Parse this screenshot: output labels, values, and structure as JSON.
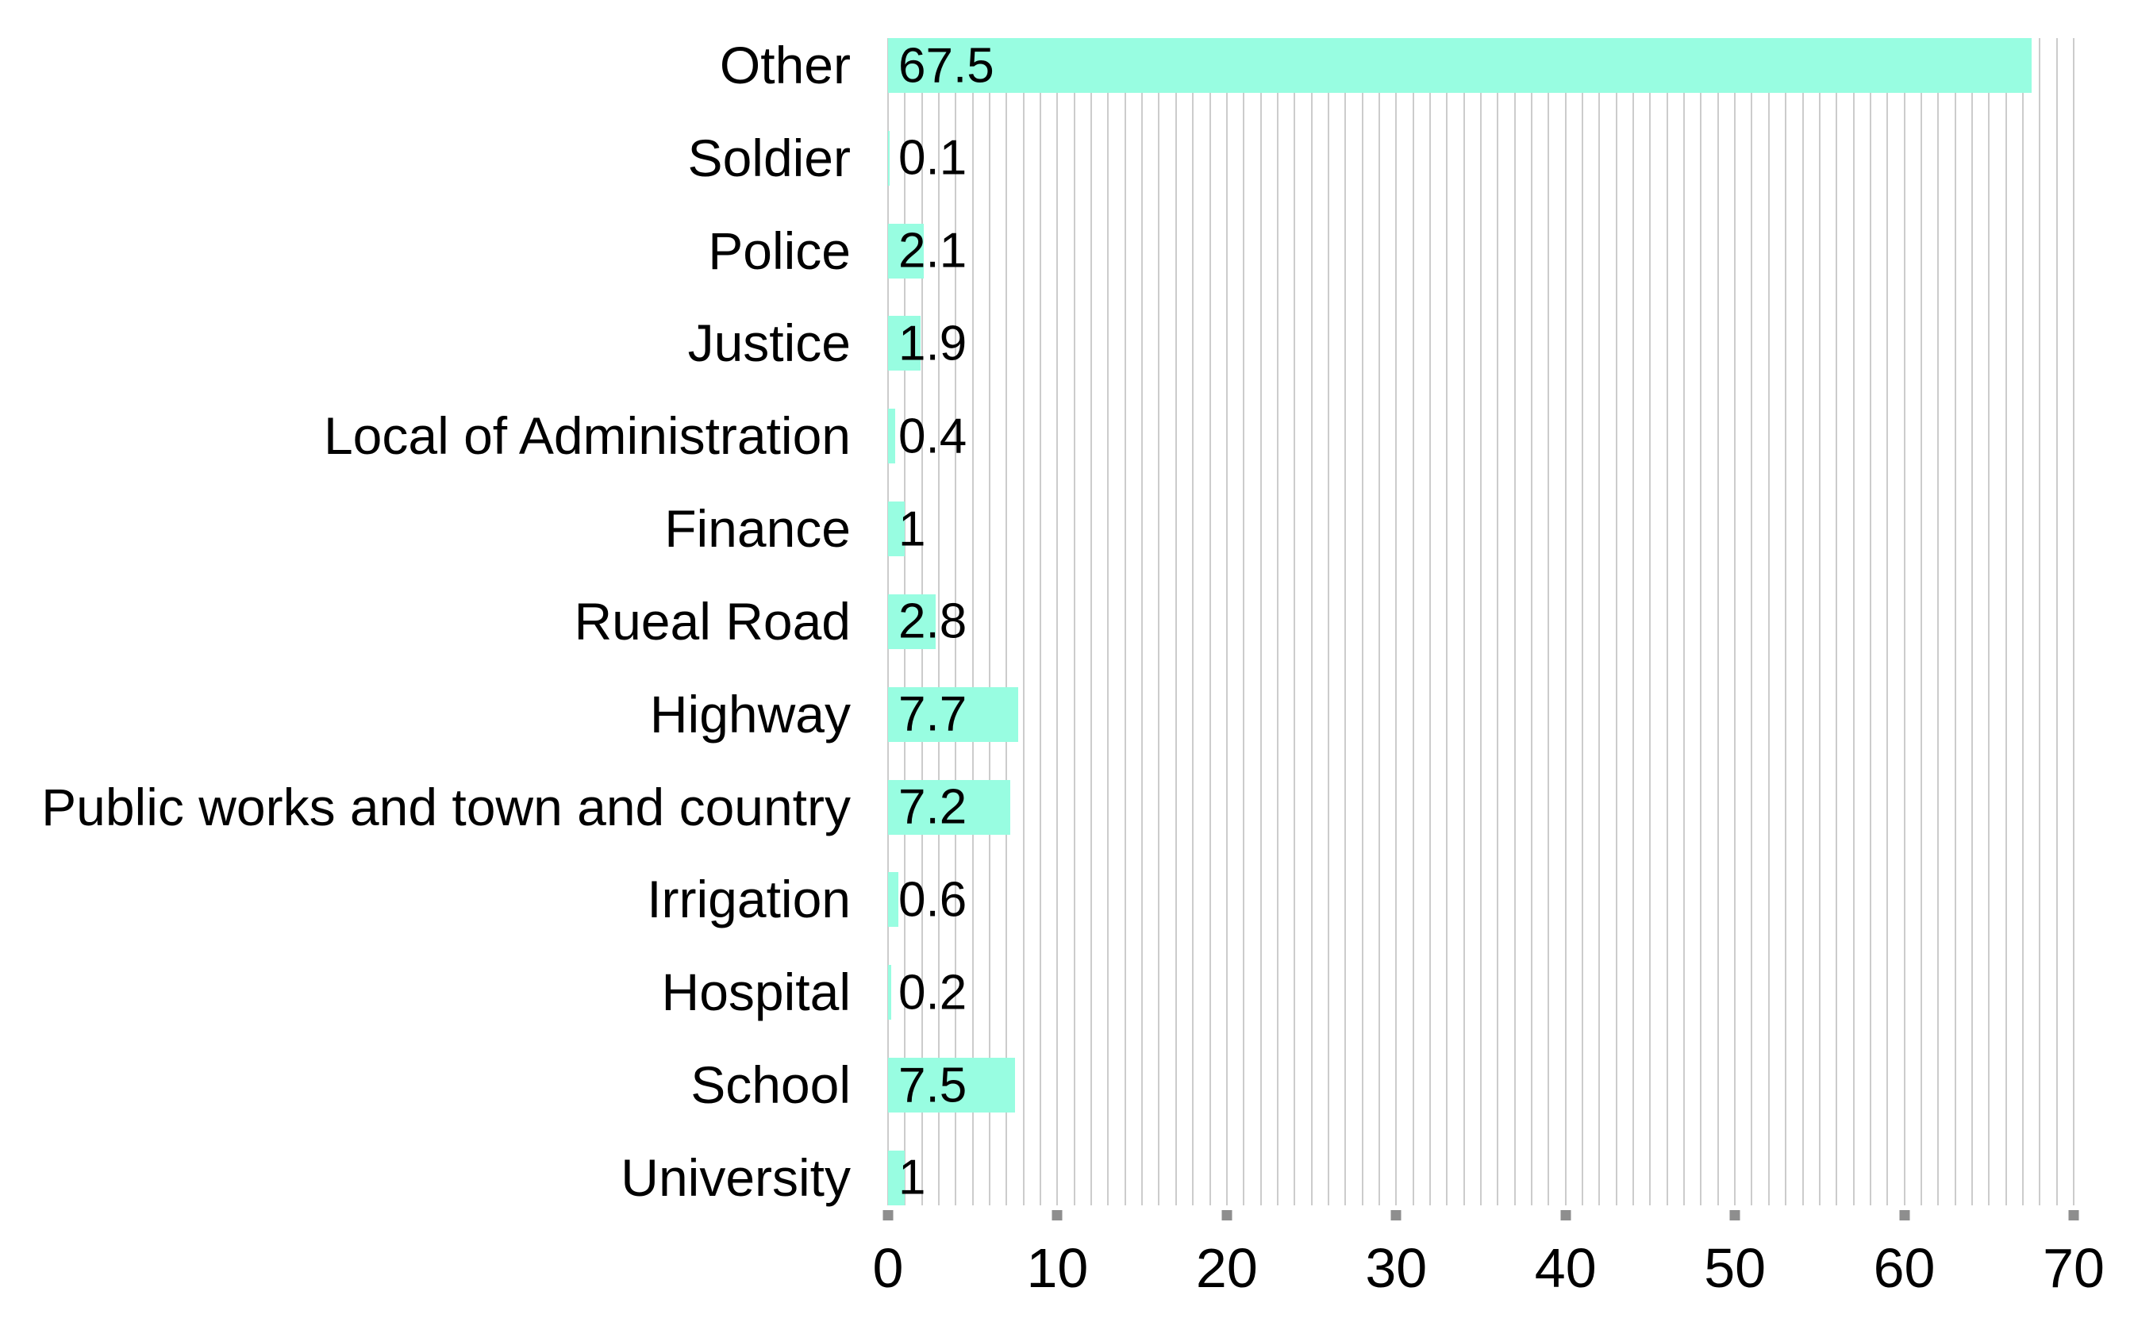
{
  "chart_data": {
    "type": "bar",
    "orientation": "horizontal",
    "title": "",
    "xlabel": "",
    "ylabel": "",
    "categories": [
      "Other",
      "Soldier",
      "Police",
      "Justice",
      "Local of Administration",
      "Finance",
      "Rueal Road",
      "Highway",
      "Public works and town and country",
      "Irrigation",
      "Hospital",
      "School",
      "University"
    ],
    "values": [
      67.5,
      0.1,
      2.1,
      1.9,
      0.4,
      1,
      2.8,
      7.7,
      7.2,
      0.6,
      0.2,
      7.5,
      1
    ],
    "value_labels": [
      "67.5",
      "0.1",
      "2.1",
      "1.9",
      "0.4",
      "1",
      "2.8",
      "7.7",
      "7.2",
      "0.6",
      "0.2",
      "7.5",
      "1"
    ],
    "xlim": [
      0,
      70
    ],
    "x_ticks": [
      0,
      10,
      20,
      30,
      40,
      50,
      60,
      70
    ],
    "gridline_step": 1,
    "grid": "vertical-minor-gridlines",
    "legend": null,
    "colors": {
      "bar": "#98FDE1",
      "gridline": "#CCCCCC",
      "tick_mark": "#8E8E8E",
      "text": "#000000",
      "background": "#FFFFFF"
    }
  }
}
